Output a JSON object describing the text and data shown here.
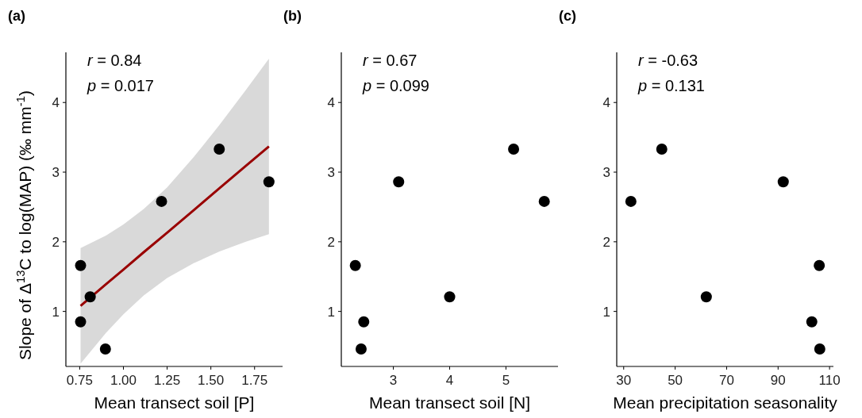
{
  "chart_data": [
    {
      "type": "scatter",
      "title": "(a)",
      "xlabel": "Mean transect soil [P]",
      "ylabel": "Slope of Δ$^{13}$C to log(MAP) (‰ mm$^{-1}$)",
      "annotations": [
        "r = 0.84",
        "p = 0.017"
      ],
      "xlim": [
        0.671,
        1.91
      ],
      "xticks": [
        {
          "value": 0.75,
          "label": "0.75"
        },
        {
          "value": 1,
          "label": "1.00"
        },
        1.25,
        {
          "value": 1.5,
          "label": "1.50"
        },
        1.75
      ],
      "ylim": [
        0.21,
        4.72
      ],
      "yticks": [
        1,
        2,
        3,
        4
      ],
      "marker": "circle",
      "grid": false,
      "series": [
        {
          "color": "#000000",
          "x": [
            0.755,
            0.755,
            0.81,
            0.897,
            1.218,
            1.548,
            1.832
          ],
          "values": [
            1.66,
            0.85,
            1.21,
            0.46,
            2.58,
            3.33,
            2.86
          ]
        },
        {
          "type": "line",
          "marker": "none",
          "color": "#990000",
          "x": [
            0.755,
            0.9,
            1.0,
            1.116,
            1.25,
            1.4,
            1.55,
            1.7,
            1.832
          ],
          "values": [
            1.08,
            1.39,
            1.6,
            1.85,
            2.13,
            2.45,
            2.77,
            3.09,
            3.37
          ],
          "lower": [
            0.25,
            0.69,
            0.96,
            1.23,
            1.48,
            1.69,
            1.86,
            2.0,
            2.11
          ],
          "upper": [
            1.91,
            2.09,
            2.25,
            2.47,
            2.78,
            3.21,
            3.68,
            4.18,
            4.63
          ]
        }
      ]
    },
    {
      "type": "scatter",
      "title": "(b)",
      "xlabel": "Mean transect soil [N]",
      "annotations": [
        "r = 0.67",
        "p = 0.099"
      ],
      "xlim": [
        2.075,
        5.925
      ],
      "xticks": [
        3,
        4,
        5
      ],
      "ylim": [
        0.21,
        4.72
      ],
      "yticks": [
        1,
        2,
        3,
        4
      ],
      "marker": "circle",
      "grid": false,
      "series": [
        {
          "color": "#000000",
          "x": [
            2.324,
            2.474,
            2.427,
            3.094,
            4.0,
            5.136,
            5.681
          ],
          "values": [
            1.66,
            0.85,
            0.46,
            2.86,
            1.21,
            3.33,
            2.58
          ]
        }
      ]
    },
    {
      "type": "scatter",
      "title": "(c)",
      "xlabel": "Mean precipitation seasonality",
      "annotations": [
        "r = -0.63",
        "p = 0.131"
      ],
      "xlim": [
        27.3,
        111.5
      ],
      "xticks": [
        30,
        50,
        70,
        90,
        110
      ],
      "ylim": [
        0.21,
        4.72
      ],
      "yticks": [
        1,
        2,
        3,
        4
      ],
      "marker": "circle",
      "grid": false,
      "series": [
        {
          "color": "#000000",
          "x": [
            32.8,
            44.8,
            62.1,
            92.0,
            106.0,
            103.1,
            106.2
          ],
          "values": [
            2.58,
            3.33,
            1.21,
            2.86,
            1.66,
            0.85,
            0.46
          ]
        }
      ]
    }
  ]
}
